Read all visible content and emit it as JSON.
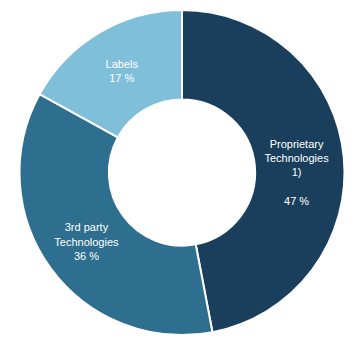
{
  "chart_data": {
    "type": "donut",
    "categories": [
      "Proprietary\nTechnologies\n1)\n\n47 %",
      "3rd party\nTechnologies\n36 %",
      "Labels\n17 %"
    ],
    "values": [
      47,
      36,
      17
    ],
    "colors": [
      "#1a3f5c",
      "#2e6e8e",
      "#7fbfda"
    ]
  }
}
